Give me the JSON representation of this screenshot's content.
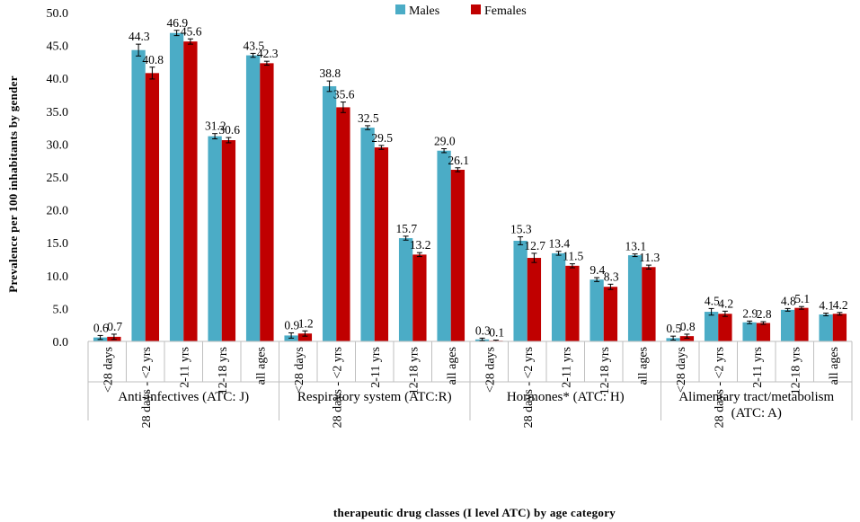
{
  "chart_data": {
    "type": "bar",
    "title": "",
    "ylabel": "Prevalence per 100 inhabitants by gender",
    "xlabel": "therapeutic drug classes (I level ATC) by age category",
    "ylim": [
      0,
      50
    ],
    "yticks": [
      "0.0",
      "5.0",
      "10.0",
      "15.0",
      "20.0",
      "25.0",
      "30.0",
      "35.0",
      "40.0",
      "45.0",
      "50.0"
    ],
    "grid": false,
    "legend": {
      "position": "top-center",
      "entries": [
        "Males",
        "Females"
      ]
    },
    "colors": {
      "males": "#4bacc6",
      "females": "#c00000"
    },
    "groups": [
      {
        "name": "Anti-infectives (ATC: J)",
        "categories": [
          "<28 days",
          "28 days - <2 yrs",
          "2-11 yrs",
          "12-18 yrs",
          "all ages"
        ]
      },
      {
        "name": "Respiratory system (ATC:R)",
        "categories": [
          "<28 days",
          "28 days - <2 yrs",
          "2-11 yrs",
          "12-18 yrs",
          "all ages"
        ]
      },
      {
        "name": "Hormones* (ATC: H)",
        "categories": [
          "<28 days",
          "28 days - <2 yrs",
          "2-11 yrs",
          "12-18 yrs",
          "all ages"
        ]
      },
      {
        "name_lines": [
          "Alimentary tract/metabolism",
          "(ATC: A)"
        ],
        "categories": [
          "<28 days",
          "28 days - <2 yrs",
          "2-11 yrs",
          "12-18 yrs",
          "all ages"
        ]
      }
    ],
    "series": [
      {
        "name": "Males",
        "values": [
          0.6,
          44.3,
          46.9,
          31.2,
          43.5,
          0.9,
          38.8,
          32.5,
          15.7,
          29.0,
          0.3,
          15.3,
          13.4,
          9.4,
          13.1,
          0.5,
          4.5,
          2.9,
          4.8,
          4.1
        ],
        "labels": [
          "0.6",
          "44.3",
          "46.9",
          "31.2",
          "43.5",
          "0.9",
          "38.8",
          "32.5",
          "15.7",
          "29.0",
          "0.3",
          "15.3",
          "13.4",
          "9.4",
          "13.1",
          "0.5",
          "4.5",
          "2.9",
          "4.8",
          "4.1"
        ],
        "errors": [
          0.3,
          0.9,
          0.4,
          0.4,
          0.3,
          0.4,
          0.8,
          0.3,
          0.3,
          0.3,
          0.2,
          0.6,
          0.3,
          0.3,
          0.2,
          0.3,
          0.5,
          0.2,
          0.2,
          0.2
        ]
      },
      {
        "name": "Females",
        "values": [
          0.7,
          40.8,
          45.6,
          30.6,
          42.3,
          1.2,
          35.6,
          29.5,
          13.2,
          26.1,
          0.1,
          12.7,
          11.5,
          8.3,
          11.3,
          0.8,
          4.2,
          2.8,
          5.1,
          4.2
        ],
        "labels": [
          "0.7",
          "40.8",
          "45.6",
          "30.6",
          "42.3",
          "1.2",
          "35.6",
          "29.5",
          "13.2",
          "26.1",
          "0.1",
          "12.7",
          "11.5",
          "8.3",
          "11.3",
          "0.8",
          "4.2",
          "2.8",
          "5.1",
          "4.2"
        ],
        "errors": [
          0.4,
          0.9,
          0.4,
          0.4,
          0.3,
          0.4,
          0.8,
          0.3,
          0.3,
          0.3,
          0.1,
          0.7,
          0.3,
          0.4,
          0.3,
          0.3,
          0.4,
          0.2,
          0.2,
          0.2
        ]
      }
    ]
  }
}
